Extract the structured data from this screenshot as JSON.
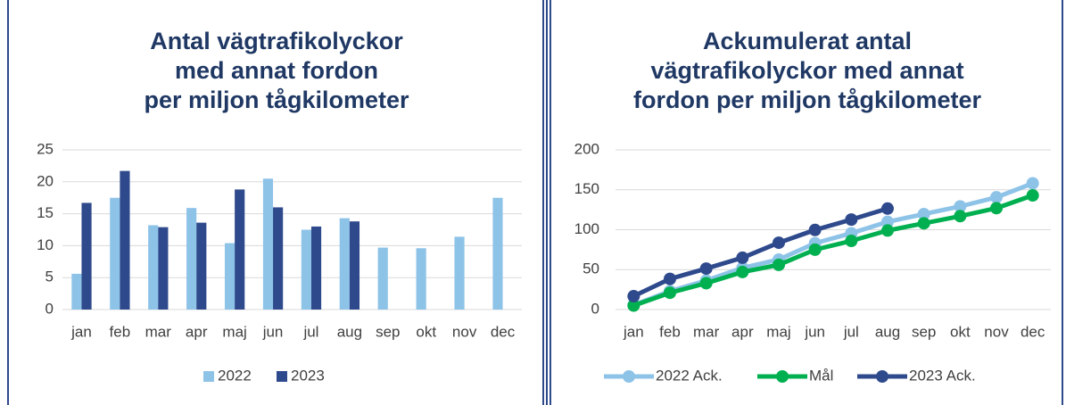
{
  "chart_data": [
    {
      "type": "bar",
      "title": [
        "Antal vägtrafikolyckor",
        "med annat fordon",
        "per miljon tågkilometer"
      ],
      "categories": [
        "jan",
        "feb",
        "mar",
        "apr",
        "maj",
        "jun",
        "jul",
        "aug",
        "sep",
        "okt",
        "nov",
        "dec"
      ],
      "series": [
        {
          "name": "2022",
          "color": "#8ec3e8",
          "values": [
            5.6,
            17.5,
            13.2,
            15.9,
            10.4,
            20.5,
            12.5,
            14.3,
            9.7,
            9.6,
            11.4,
            17.5
          ]
        },
        {
          "name": "2023",
          "color": "#2e4a8c",
          "values": [
            16.7,
            21.7,
            12.9,
            13.6,
            18.8,
            16.0,
            13.0,
            13.8,
            null,
            null,
            null,
            null
          ]
        }
      ],
      "ylim": [
        0,
        25
      ],
      "yticks": [
        0,
        5,
        10,
        15,
        20,
        25
      ],
      "grid": true,
      "legend": "bottom"
    },
    {
      "type": "line",
      "title": [
        "Ackumulerat antal",
        "vägtrafikolyckor med annat",
        "fordon per miljon tågkilometer"
      ],
      "categories": [
        "jan",
        "feb",
        "mar",
        "apr",
        "maj",
        "jun",
        "jul",
        "aug",
        "sep",
        "okt",
        "nov",
        "dec"
      ],
      "series": [
        {
          "name": "2022 Ack.",
          "color": "#8ec3e8",
          "values": [
            5.6,
            23.1,
            36.3,
            52.2,
            62.6,
            83.1,
            95.6,
            109.9,
            119.6,
            129.2,
            140.6,
            158.1
          ]
        },
        {
          "name": "Mål",
          "color": "#00b050",
          "values": [
            5,
            21,
            33,
            47,
            56,
            75,
            86,
            99,
            108,
            117,
            127,
            143
          ]
        },
        {
          "name": "2023 Ack.",
          "color": "#2e4a8c",
          "values": [
            16.7,
            38.4,
            51.3,
            64.9,
            83.7,
            99.7,
            112.7,
            126.5,
            null,
            null,
            null,
            null
          ]
        }
      ],
      "ylim": [
        0,
        200
      ],
      "yticks": [
        0,
        50,
        100,
        150,
        200
      ],
      "grid": true,
      "legend": "bottom"
    }
  ]
}
